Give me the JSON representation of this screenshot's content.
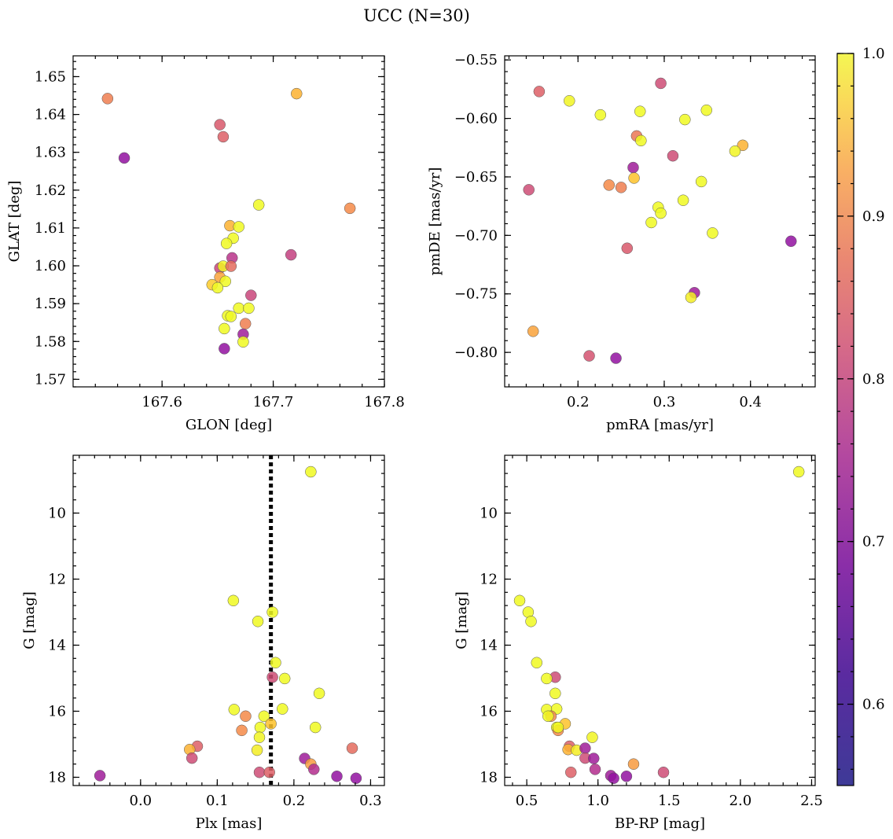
{
  "chart_data": {
    "title": "UCC (N=30)",
    "type": "scatter",
    "colorbar": {
      "colormap": "plasma",
      "range": [
        0.55,
        1.0
      ],
      "ticks": [
        "0.6",
        "0.7",
        "0.8",
        "0.9",
        "1.0"
      ]
    },
    "panels": [
      {
        "xlabel": "GLON [deg]",
        "ylabel": "GLAT [deg]",
        "xlim": [
          167.52,
          167.8
        ],
        "ylim": [
          1.568,
          1.6555
        ],
        "xticks": [
          "167.6",
          "167.7",
          "167.8"
        ],
        "yticks": [
          "1.57",
          "1.58",
          "1.59",
          "1.60",
          "1.61",
          "1.62",
          "1.63",
          "1.64",
          "1.65"
        ],
        "invert_y": false,
        "points": [
          {
            "x": 167.551,
            "y": 1.6442,
            "c": 0.78
          },
          {
            "x": 167.566,
            "y": 1.6285,
            "c": 0.6
          },
          {
            "x": 167.652,
            "y": 1.6373,
            "c": 0.72
          },
          {
            "x": 167.655,
            "y": 1.6341,
            "c": 0.73
          },
          {
            "x": 167.721,
            "y": 1.6455,
            "c": 0.85
          },
          {
            "x": 167.769,
            "y": 1.6152,
            "c": 0.8
          },
          {
            "x": 167.687,
            "y": 1.6161,
            "c": 0.98
          },
          {
            "x": 167.661,
            "y": 1.6106,
            "c": 0.85
          },
          {
            "x": 167.669,
            "y": 1.6103,
            "c": 0.97
          },
          {
            "x": 167.664,
            "y": 1.6073,
            "c": 0.98
          },
          {
            "x": 167.658,
            "y": 1.6059,
            "c": 0.97
          },
          {
            "x": 167.716,
            "y": 1.6029,
            "c": 0.68
          },
          {
            "x": 167.663,
            "y": 1.6021,
            "c": 0.66
          },
          {
            "x": 167.652,
            "y": 1.5994,
            "c": 0.69
          },
          {
            "x": 167.655,
            "y": 1.5999,
            "c": 0.93
          },
          {
            "x": 167.662,
            "y": 1.5999,
            "c": 0.75
          },
          {
            "x": 167.652,
            "y": 1.597,
            "c": 0.83
          },
          {
            "x": 167.657,
            "y": 1.5959,
            "c": 0.98
          },
          {
            "x": 167.645,
            "y": 1.595,
            "c": 0.88
          },
          {
            "x": 167.65,
            "y": 1.5942,
            "c": 0.98
          },
          {
            "x": 167.68,
            "y": 1.5922,
            "c": 0.69
          },
          {
            "x": 167.669,
            "y": 1.5888,
            "c": 0.98
          },
          {
            "x": 167.678,
            "y": 1.5888,
            "c": 0.98
          },
          {
            "x": 167.659,
            "y": 1.5868,
            "c": 0.95
          },
          {
            "x": 167.662,
            "y": 1.5866,
            "c": 0.96
          },
          {
            "x": 167.675,
            "y": 1.5847,
            "c": 0.78
          },
          {
            "x": 167.656,
            "y": 1.5834,
            "c": 0.98
          },
          {
            "x": 167.673,
            "y": 1.5819,
            "c": 0.62
          },
          {
            "x": 167.673,
            "y": 1.5799,
            "c": 0.94
          },
          {
            "x": 167.656,
            "y": 1.5781,
            "c": 0.6
          }
        ]
      },
      {
        "xlabel": "pmRA [mas/yr]",
        "ylabel": "pmDE [mas/yr]",
        "xlim": [
          0.115,
          0.475
        ],
        "ylim": [
          -0.8295,
          -0.5465
        ],
        "xticks": [
          "0.2",
          "0.3",
          "0.4"
        ],
        "yticks": [
          "−0.80",
          "−0.75",
          "−0.70",
          "−0.65",
          "−0.60",
          "−0.55"
        ],
        "invert_y": false,
        "points": [
          {
            "x": 0.155,
            "y": -0.577,
            "c": 0.73
          },
          {
            "x": 0.19,
            "y": -0.585,
            "c": 0.93
          },
          {
            "x": 0.296,
            "y": -0.57,
            "c": 0.7
          },
          {
            "x": 0.349,
            "y": -0.593,
            "c": 0.98
          },
          {
            "x": 0.272,
            "y": -0.594,
            "c": 0.98
          },
          {
            "x": 0.226,
            "y": -0.597,
            "c": 0.98
          },
          {
            "x": 0.324,
            "y": -0.601,
            "c": 0.98
          },
          {
            "x": 0.268,
            "y": -0.615,
            "c": 0.77
          },
          {
            "x": 0.273,
            "y": -0.619,
            "c": 0.95
          },
          {
            "x": 0.391,
            "y": -0.623,
            "c": 0.85
          },
          {
            "x": 0.382,
            "y": -0.628,
            "c": 0.93
          },
          {
            "x": 0.31,
            "y": -0.632,
            "c": 0.7
          },
          {
            "x": 0.264,
            "y": -0.642,
            "c": 0.62
          },
          {
            "x": 0.265,
            "y": -0.651,
            "c": 0.87
          },
          {
            "x": 0.343,
            "y": -0.654,
            "c": 0.98
          },
          {
            "x": 0.236,
            "y": -0.657,
            "c": 0.8
          },
          {
            "x": 0.25,
            "y": -0.659,
            "c": 0.78
          },
          {
            "x": 0.143,
            "y": -0.661,
            "c": 0.7
          },
          {
            "x": 0.322,
            "y": -0.67,
            "c": 0.98
          },
          {
            "x": 0.293,
            "y": -0.676,
            "c": 0.98
          },
          {
            "x": 0.296,
            "y": -0.681,
            "c": 0.98
          },
          {
            "x": 0.285,
            "y": -0.689,
            "c": 0.97
          },
          {
            "x": 0.356,
            "y": -0.698,
            "c": 0.98
          },
          {
            "x": 0.447,
            "y": -0.705,
            "c": 0.6
          },
          {
            "x": 0.257,
            "y": -0.711,
            "c": 0.72
          },
          {
            "x": 0.335,
            "y": -0.749,
            "c": 0.62
          },
          {
            "x": 0.331,
            "y": -0.753,
            "c": 0.92
          },
          {
            "x": 0.148,
            "y": -0.782,
            "c": 0.83
          },
          {
            "x": 0.213,
            "y": -0.803,
            "c": 0.71
          },
          {
            "x": 0.244,
            "y": -0.805,
            "c": 0.6
          }
        ]
      },
      {
        "xlabel": "Plx [mas]",
        "ylabel": "G [mag]",
        "xlim": [
          -0.088,
          0.318
        ],
        "ylim": [
          8.25,
          18.25
        ],
        "xticks": [
          "0.0",
          "0.1",
          "0.2",
          "0.3"
        ],
        "yticks": [
          "10",
          "12",
          "14",
          "16",
          "18"
        ],
        "invert_y": true,
        "vline": 0.17,
        "points": [
          {
            "x": 0.222,
            "y": 8.75,
            "c": 0.98
          },
          {
            "x": 0.121,
            "y": 12.65,
            "c": 0.98
          },
          {
            "x": 0.172,
            "y": 13.0,
            "c": 0.98
          },
          {
            "x": 0.153,
            "y": 13.28,
            "c": 0.98
          },
          {
            "x": 0.176,
            "y": 14.53,
            "c": 0.98
          },
          {
            "x": 0.172,
            "y": 14.97,
            "c": 0.7
          },
          {
            "x": 0.188,
            "y": 15.01,
            "c": 0.98
          },
          {
            "x": 0.233,
            "y": 15.46,
            "c": 0.97
          },
          {
            "x": 0.122,
            "y": 15.95,
            "c": 0.98
          },
          {
            "x": 0.185,
            "y": 15.93,
            "c": 0.98
          },
          {
            "x": 0.137,
            "y": 16.15,
            "c": 0.8
          },
          {
            "x": 0.161,
            "y": 16.15,
            "c": 0.95
          },
          {
            "x": 0.17,
            "y": 16.38,
            "c": 0.87
          },
          {
            "x": 0.156,
            "y": 16.49,
            "c": 0.98
          },
          {
            "x": 0.228,
            "y": 16.49,
            "c": 0.94
          },
          {
            "x": 0.132,
            "y": 16.58,
            "c": 0.8
          },
          {
            "x": 0.155,
            "y": 16.79,
            "c": 0.93
          },
          {
            "x": 0.074,
            "y": 17.06,
            "c": 0.73
          },
          {
            "x": 0.064,
            "y": 17.16,
            "c": 0.85
          },
          {
            "x": 0.152,
            "y": 17.18,
            "c": 0.92
          },
          {
            "x": 0.276,
            "y": 17.12,
            "c": 0.75
          },
          {
            "x": 0.067,
            "y": 17.42,
            "c": 0.7
          },
          {
            "x": 0.214,
            "y": 17.43,
            "c": 0.62
          },
          {
            "x": 0.222,
            "y": 17.6,
            "c": 0.82
          },
          {
            "x": 0.226,
            "y": 17.76,
            "c": 0.65
          },
          {
            "x": 0.155,
            "y": 17.85,
            "c": 0.7
          },
          {
            "x": 0.168,
            "y": 17.85,
            "c": 0.73
          },
          {
            "x": -0.053,
            "y": 17.95,
            "c": 0.62
          },
          {
            "x": 0.256,
            "y": 17.97,
            "c": 0.6
          },
          {
            "x": 0.281,
            "y": 18.03,
            "c": 0.6
          }
        ]
      },
      {
        "xlabel": "BP-RP [mag]",
        "ylabel": "G [mag]",
        "xlim": [
          0.345,
          2.525
        ],
        "ylim": [
          8.25,
          18.25
        ],
        "xticks": [
          "0.5",
          "1.0",
          "1.5",
          "2.0",
          "2.5"
        ],
        "yticks": [
          "10",
          "12",
          "14",
          "16",
          "18"
        ],
        "invert_y": true,
        "points": [
          {
            "x": 2.41,
            "y": 8.75,
            "c": 0.98
          },
          {
            "x": 0.45,
            "y": 12.65,
            "c": 0.98
          },
          {
            "x": 0.51,
            "y": 13.0,
            "c": 0.98
          },
          {
            "x": 0.53,
            "y": 13.28,
            "c": 0.98
          },
          {
            "x": 0.57,
            "y": 14.53,
            "c": 0.98
          },
          {
            "x": 0.7,
            "y": 14.97,
            "c": 0.7
          },
          {
            "x": 0.64,
            "y": 15.01,
            "c": 0.98
          },
          {
            "x": 0.7,
            "y": 15.46,
            "c": 0.97
          },
          {
            "x": 0.64,
            "y": 15.95,
            "c": 0.98
          },
          {
            "x": 0.71,
            "y": 15.93,
            "c": 0.98
          },
          {
            "x": 0.67,
            "y": 16.15,
            "c": 0.8
          },
          {
            "x": 0.65,
            "y": 16.15,
            "c": 0.95
          },
          {
            "x": 0.77,
            "y": 16.38,
            "c": 0.87
          },
          {
            "x": 0.71,
            "y": 16.49,
            "c": 0.98
          },
          {
            "x": 0.72,
            "y": 16.58,
            "c": 0.8
          },
          {
            "x": 0.96,
            "y": 16.79,
            "c": 0.93
          },
          {
            "x": 0.8,
            "y": 17.06,
            "c": 0.73
          },
          {
            "x": 0.79,
            "y": 17.16,
            "c": 0.85
          },
          {
            "x": 0.85,
            "y": 17.18,
            "c": 0.92
          },
          {
            "x": 0.91,
            "y": 17.12,
            "c": 0.62
          },
          {
            "x": 0.91,
            "y": 17.42,
            "c": 0.7
          },
          {
            "x": 0.97,
            "y": 17.43,
            "c": 0.62
          },
          {
            "x": 1.25,
            "y": 17.6,
            "c": 0.82
          },
          {
            "x": 0.98,
            "y": 17.76,
            "c": 0.65
          },
          {
            "x": 0.81,
            "y": 17.85,
            "c": 0.73
          },
          {
            "x": 1.46,
            "y": 17.85,
            "c": 0.7
          },
          {
            "x": 1.09,
            "y": 17.95,
            "c": 0.62
          },
          {
            "x": 1.11,
            "y": 18.03,
            "c": 0.6
          },
          {
            "x": 1.2,
            "y": 17.97,
            "c": 0.6
          },
          {
            "x": 0.72,
            "y": 16.49,
            "c": 0.94
          }
        ]
      }
    ]
  }
}
